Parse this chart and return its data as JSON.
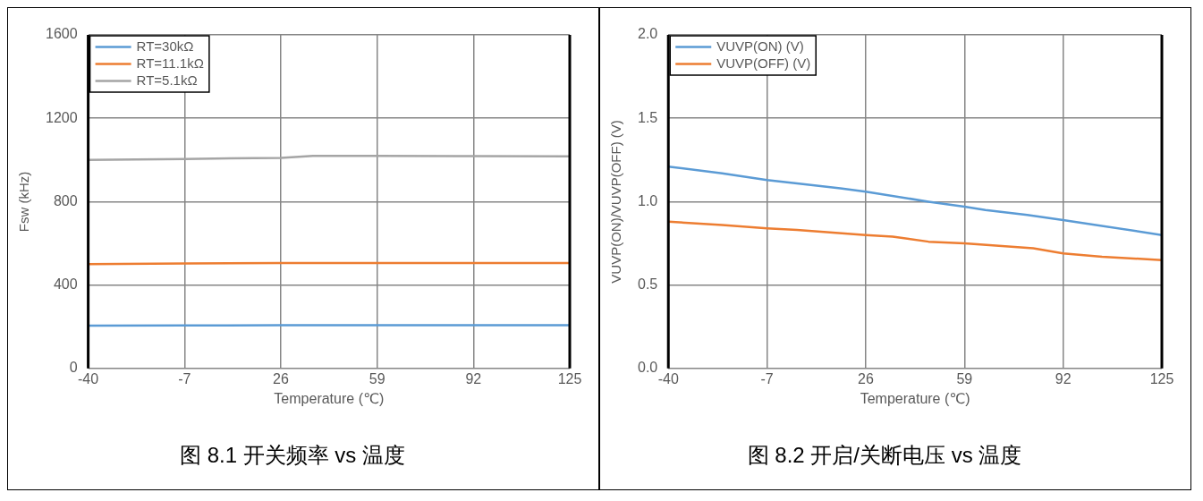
{
  "chart_data": [
    {
      "type": "line",
      "title": "图 8.1 开关频率 vs 温度",
      "xlabel": "Temperature (℃)",
      "ylabel": "Fsw (kHz)",
      "xlim": [
        -40,
        125
      ],
      "xticks": [
        -40,
        -7,
        26,
        59,
        92,
        125
      ],
      "ylim": [
        0,
        1600
      ],
      "yticks": [
        0,
        400,
        800,
        1200,
        1600
      ],
      "grid": true,
      "legend": "top left",
      "marker": "none",
      "line_style": "solid",
      "series": [
        {
          "name": "RT=30kΩ",
          "color": "#5b9bd5",
          "x": [
            -40,
            -7,
            26,
            59,
            92,
            125
          ],
          "values": [
            205,
            206,
            207,
            207,
            207,
            207
          ]
        },
        {
          "name": "RT=11.1kΩ",
          "color": "#ed7d31",
          "x": [
            -40,
            -7,
            26,
            59,
            92,
            125
          ],
          "values": [
            500,
            503,
            506,
            506,
            506,
            506
          ]
        },
        {
          "name": "RT=5.1kΩ",
          "color": "#a5a5a5",
          "x": [
            -40,
            -7,
            26,
            37,
            59,
            92,
            125
          ],
          "values": [
            1000,
            1005,
            1010,
            1020,
            1020,
            1018,
            1017
          ]
        }
      ]
    },
    {
      "type": "line",
      "title": "图 8.2 开启/关断电压 vs 温度",
      "xlabel": "Temperature (℃)",
      "ylabel": "VUVP(ON)/VUVP(OFF) (V)",
      "xlim": [
        -40,
        125
      ],
      "xticks": [
        -40,
        -7,
        26,
        59,
        92,
        125
      ],
      "ylim": [
        0,
        2
      ],
      "yticks": [
        {
          "value": 0,
          "label": "0.0"
        },
        0.5,
        {
          "value": 1,
          "label": "1.0"
        },
        1.5,
        {
          "value": 2,
          "label": "2.0"
        }
      ],
      "grid": true,
      "legend": "top left",
      "marker": "none",
      "line_style": "solid",
      "series": [
        {
          "name": "VUVP(ON) (V)",
          "color": "#5b9bd5",
          "x": [
            -40,
            -22,
            -7,
            3,
            17.5,
            26,
            47,
            59,
            66,
            80,
            92,
            125
          ],
          "values": [
            1.21,
            1.17,
            1.13,
            1.11,
            1.08,
            1.06,
            1.0,
            0.97,
            0.95,
            0.92,
            0.89,
            0.8
          ]
        },
        {
          "name": "VUVP(OFF) (V)",
          "color": "#ed7d31",
          "x": [
            -40,
            -22,
            -7,
            3,
            26,
            35,
            47,
            59,
            82,
            92,
            105,
            125
          ],
          "values": [
            0.88,
            0.86,
            0.84,
            0.83,
            0.8,
            0.79,
            0.76,
            0.75,
            0.72,
            0.69,
            0.67,
            0.65
          ]
        }
      ]
    }
  ]
}
